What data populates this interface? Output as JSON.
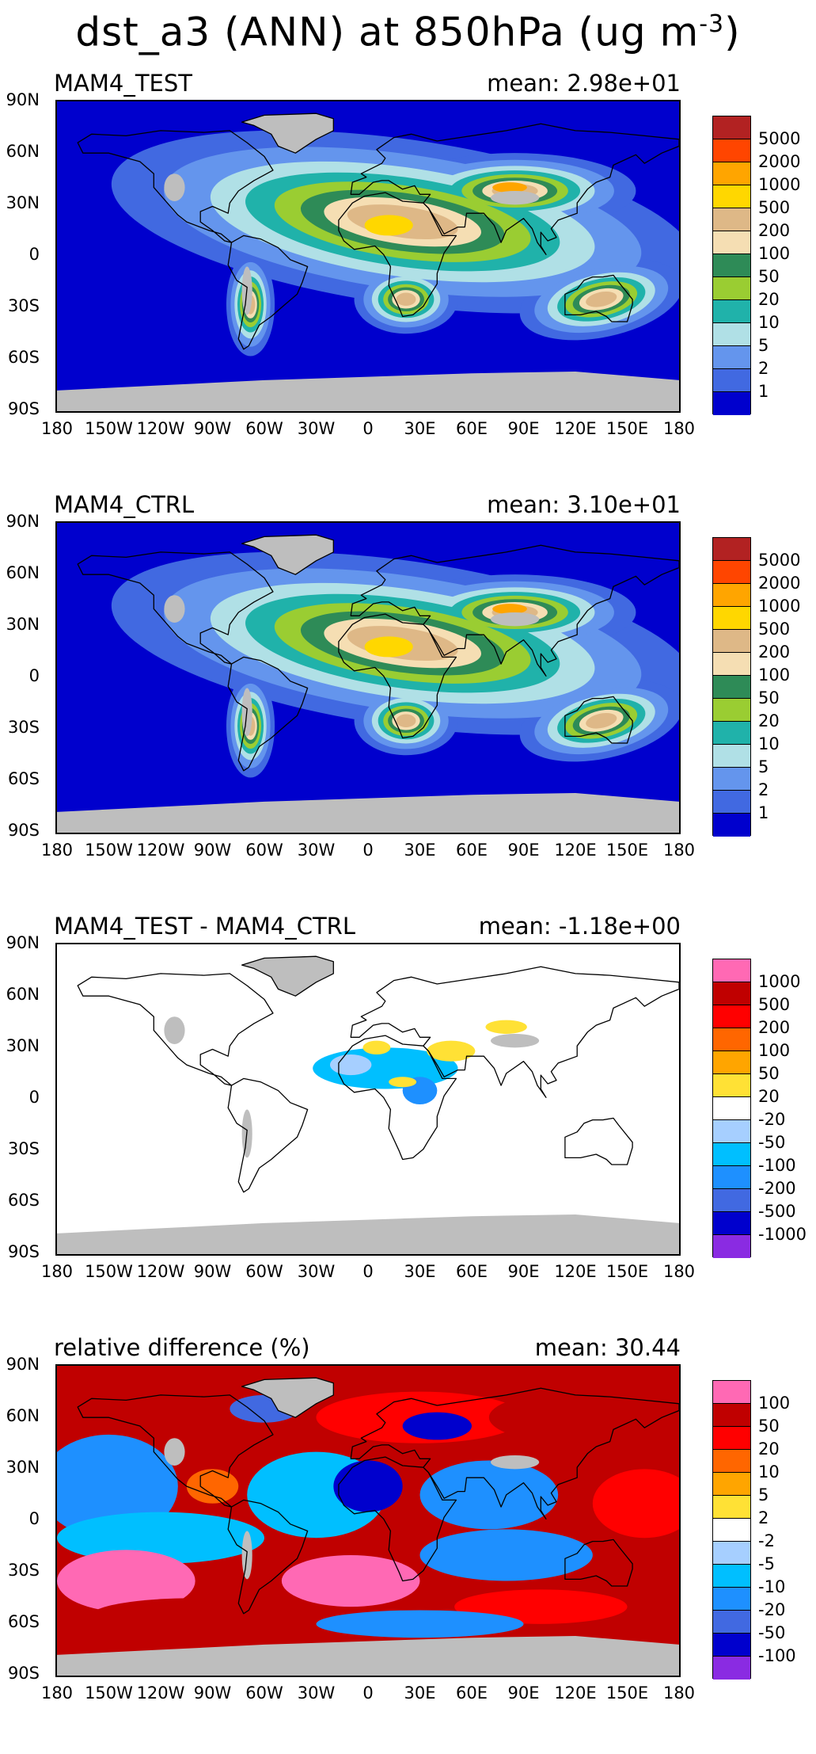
{
  "title": "dst_a3 (ANN) at 850hPa (ug m",
  "title_exp": "-3",
  "title_close": ")",
  "lat_labels": [
    "90N",
    "60N",
    "30N",
    "0",
    "30S",
    "60S",
    "90S"
  ],
  "lon_labels": [
    "180",
    "150W",
    "120W",
    "90W",
    "60W",
    "30W",
    "0",
    "30E",
    "60E",
    "90E",
    "120E",
    "150E",
    "180"
  ],
  "panels": [
    {
      "name": "MAM4_TEST",
      "mean": "mean: 2.98e+01",
      "kind": "conc",
      "colorbar": {
        "colors": [
          "#b22222",
          "#ff4500",
          "#ffa500",
          "#ffd700",
          "#deb887",
          "#f5deb3",
          "#2e8b57",
          "#9acd32",
          "#20b2aa",
          "#b0e0e6",
          "#6495ed",
          "#4169e1",
          "#0000cd"
        ],
        "labels": [
          "5000",
          "2000",
          "1000",
          "500",
          "200",
          "100",
          "50",
          "20",
          "10",
          "5",
          "2",
          "1"
        ]
      }
    },
    {
      "name": "MAM4_CTRL",
      "mean": "mean: 3.10e+01",
      "kind": "conc",
      "colorbar": {
        "colors": [
          "#b22222",
          "#ff4500",
          "#ffa500",
          "#ffd700",
          "#deb887",
          "#f5deb3",
          "#2e8b57",
          "#9acd32",
          "#20b2aa",
          "#b0e0e6",
          "#6495ed",
          "#4169e1",
          "#0000cd"
        ],
        "labels": [
          "5000",
          "2000",
          "1000",
          "500",
          "200",
          "100",
          "50",
          "20",
          "10",
          "5",
          "2",
          "1"
        ]
      }
    },
    {
      "name": "MAM4_TEST - MAM4_CTRL",
      "mean": "mean: -1.18e+00",
      "kind": "diff",
      "colorbar": {
        "colors": [
          "#ff69b4",
          "#c00000",
          "#ff0000",
          "#ff6600",
          "#ffa500",
          "#ffe135",
          "#ffffff",
          "#a6cfff",
          "#00bfff",
          "#1e90ff",
          "#4169e1",
          "#0000cd",
          "#8a2be2"
        ],
        "labels": [
          "1000",
          "500",
          "200",
          "100",
          "50",
          "20",
          "-20",
          "-50",
          "-100",
          "-200",
          "-500",
          "-1000"
        ]
      }
    },
    {
      "name": "relative difference (%)",
      "mean": "mean: 30.44",
      "kind": "rel",
      "colorbar": {
        "colors": [
          "#ff69b4",
          "#c00000",
          "#ff0000",
          "#ff6600",
          "#ffa500",
          "#ffe135",
          "#ffffff",
          "#a6cfff",
          "#00bfff",
          "#1e90ff",
          "#4169e1",
          "#0000cd",
          "#8a2be2"
        ],
        "labels": [
          "100",
          "50",
          "20",
          "10",
          "5",
          "2",
          "-2",
          "-5",
          "-10",
          "-20",
          "-50",
          "-100"
        ]
      }
    }
  ]
}
